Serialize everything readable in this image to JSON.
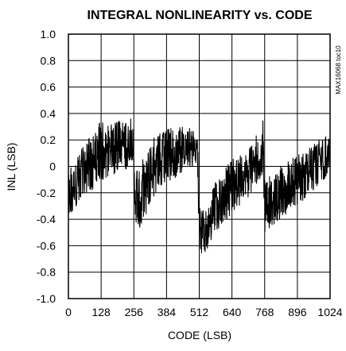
{
  "chart_data": {
    "type": "line",
    "title": "INTEGRAL NONLINEARITY vs. CODE",
    "xlabel": "CODE (LSB)",
    "ylabel": "INL (LSB)",
    "xlim": [
      0,
      1024
    ],
    "ylim": [
      -1.0,
      1.0
    ],
    "xticks": [
      0,
      128,
      256,
      384,
      512,
      640,
      768,
      896,
      1024
    ],
    "xtick_labels": [
      "0",
      "128",
      "256",
      "384",
      "512",
      "640",
      "768",
      "896",
      "1024"
    ],
    "yticks": [
      1.0,
      0.8,
      0.6,
      0.4,
      0.2,
      0,
      -0.2,
      -0.4,
      -0.6,
      -0.8,
      -1.0
    ],
    "ytick_labels": [
      "1.0",
      "0.8",
      "0.6",
      "0.4",
      "0.2",
      "0",
      "-0.2",
      "-0.4",
      "-0.6",
      "-0.8",
      "-1.0"
    ],
    "grid": true,
    "watermark": "MAX16068 toc10",
    "series": [
      {
        "color": "#000000",
        "envelope": [
          {
            "x": 0,
            "lo": -0.4,
            "hi": -0.02
          },
          {
            "x": 32,
            "lo": -0.3,
            "hi": 0.08
          },
          {
            "x": 64,
            "lo": -0.22,
            "hi": 0.18
          },
          {
            "x": 96,
            "lo": -0.18,
            "hi": 0.25
          },
          {
            "x": 118,
            "lo": -0.15,
            "hi": 0.3
          },
          {
            "x": 122,
            "lo": -0.1,
            "hi": 0.44
          },
          {
            "x": 140,
            "lo": -0.1,
            "hi": 0.3
          },
          {
            "x": 190,
            "lo": -0.05,
            "hi": 0.34
          },
          {
            "x": 250,
            "lo": 0.0,
            "hi": 0.38
          },
          {
            "x": 256,
            "lo": -0.38,
            "hi": 0.1
          },
          {
            "x": 270,
            "lo": -0.5,
            "hi": 0.0
          },
          {
            "x": 300,
            "lo": -0.4,
            "hi": 0.1
          },
          {
            "x": 340,
            "lo": -0.2,
            "hi": 0.24
          },
          {
            "x": 380,
            "lo": -0.15,
            "hi": 0.28
          },
          {
            "x": 440,
            "lo": -0.05,
            "hi": 0.3
          },
          {
            "x": 505,
            "lo": 0.0,
            "hi": 0.28
          },
          {
            "x": 512,
            "lo": -0.62,
            "hi": -0.28
          },
          {
            "x": 522,
            "lo": -0.7,
            "hi": -0.35
          },
          {
            "x": 580,
            "lo": -0.5,
            "hi": -0.1
          },
          {
            "x": 640,
            "lo": -0.35,
            "hi": 0.05
          },
          {
            "x": 700,
            "lo": -0.25,
            "hi": 0.12
          },
          {
            "x": 750,
            "lo": -0.1,
            "hi": 0.28
          },
          {
            "x": 762,
            "lo": -0.05,
            "hi": 0.35
          },
          {
            "x": 768,
            "lo": -0.5,
            "hi": -0.1
          },
          {
            "x": 800,
            "lo": -0.45,
            "hi": -0.05
          },
          {
            "x": 860,
            "lo": -0.35,
            "hi": 0.05
          },
          {
            "x": 930,
            "lo": -0.25,
            "hi": 0.12
          },
          {
            "x": 990,
            "lo": -0.12,
            "hi": 0.22
          },
          {
            "x": 1024,
            "lo": -0.05,
            "hi": 0.24
          }
        ]
      }
    ]
  }
}
